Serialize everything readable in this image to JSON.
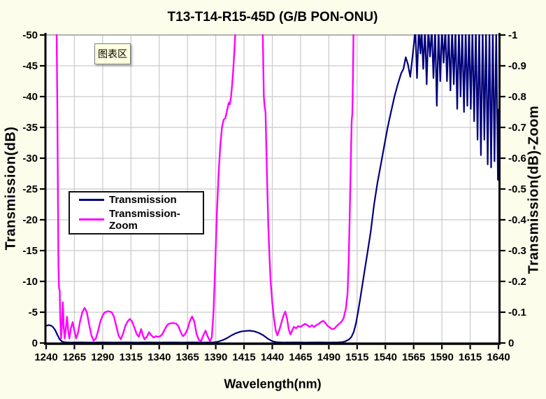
{
  "window": {
    "background": "#FDFDEC",
    "plot_background": "#FFFFFF",
    "gridline_color": "#C9C9C9"
  },
  "tooltip": {
    "label": "图表区"
  },
  "chart_data": {
    "type": "line",
    "title": "T13-T14-R15-45D (G/B PON-ONU)",
    "xlabel": "Wavelength(nm)",
    "ylabel_left": "Transmission(dB)",
    "ylabel_right": "Transmission(dB)-Zoom",
    "x_range": [
      1240,
      1640
    ],
    "y_left_range": [
      -50,
      0
    ],
    "y_right_range": [
      -1,
      0
    ],
    "axes_note": "both y axes inverted: most negative value at top, 0 at bottom",
    "grid": true,
    "legend_position": "inside top-left",
    "x_ticks": [
      1240,
      1265,
      1290,
      1315,
      1340,
      1365,
      1390,
      1415,
      1440,
      1465,
      1490,
      1515,
      1540,
      1565,
      1590,
      1615,
      1640
    ],
    "y_left_ticks": [
      -50,
      -45,
      -40,
      -35,
      -30,
      -25,
      -20,
      -15,
      -10,
      -5,
      0
    ],
    "y_right_ticks": [
      -1,
      -0.9,
      -0.8,
      -0.7,
      -0.6,
      -0.5,
      -0.4,
      -0.3,
      -0.2,
      -0.1,
      0
    ],
    "annotations": [
      {
        "text": "图表区",
        "type": "tooltip",
        "location": "top-left of plot"
      }
    ],
    "series": [
      {
        "name": "Transmission",
        "axis": "left",
        "color": "#00007B",
        "width": 2.2,
        "points": [
          [
            1240,
            -2.8
          ],
          [
            1242,
            -2.9
          ],
          [
            1244,
            -2.85
          ],
          [
            1246,
            -2.6
          ],
          [
            1248,
            -2.1
          ],
          [
            1250,
            -1.3
          ],
          [
            1252,
            -0.6
          ],
          [
            1254,
            -0.25
          ],
          [
            1256,
            -0.12
          ],
          [
            1260,
            -0.08
          ],
          [
            1270,
            -0.1
          ],
          [
            1280,
            -0.07
          ],
          [
            1290,
            -0.1
          ],
          [
            1300,
            -0.08
          ],
          [
            1310,
            -0.1
          ],
          [
            1320,
            -0.08
          ],
          [
            1330,
            -0.1
          ],
          [
            1340,
            -0.08
          ],
          [
            1350,
            -0.1
          ],
          [
            1360,
            -0.08
          ],
          [
            1370,
            -0.1
          ],
          [
            1380,
            -0.08
          ],
          [
            1388,
            -0.1
          ],
          [
            1392,
            -0.2
          ],
          [
            1396,
            -0.45
          ],
          [
            1400,
            -0.8
          ],
          [
            1404,
            -1.25
          ],
          [
            1408,
            -1.6
          ],
          [
            1412,
            -1.85
          ],
          [
            1416,
            -1.95
          ],
          [
            1420,
            -2.0
          ],
          [
            1424,
            -1.9
          ],
          [
            1428,
            -1.65
          ],
          [
            1432,
            -1.25
          ],
          [
            1436,
            -0.7
          ],
          [
            1440,
            -0.3
          ],
          [
            1444,
            -0.12
          ],
          [
            1450,
            -0.08
          ],
          [
            1460,
            -0.1
          ],
          [
            1470,
            -0.08
          ],
          [
            1480,
            -0.1
          ],
          [
            1490,
            -0.08
          ],
          [
            1498,
            -0.1
          ],
          [
            1502,
            -0.15
          ],
          [
            1505,
            -0.3
          ],
          [
            1508,
            -0.6
          ],
          [
            1510,
            -1.0
          ],
          [
            1512,
            -1.8
          ],
          [
            1514,
            -3.2
          ],
          [
            1516,
            -5.2
          ],
          [
            1518,
            -7.5
          ],
          [
            1521,
            -11
          ],
          [
            1524,
            -14.5
          ],
          [
            1527,
            -18
          ],
          [
            1530,
            -22.5
          ],
          [
            1533,
            -26
          ],
          [
            1536,
            -29
          ],
          [
            1539,
            -32
          ],
          [
            1542,
            -35
          ],
          [
            1545,
            -37.5
          ],
          [
            1548,
            -40
          ],
          [
            1551,
            -42
          ],
          [
            1554,
            -43.8
          ],
          [
            1556,
            -44.5
          ],
          [
            1558,
            -46.4
          ],
          [
            1560,
            -45.2
          ],
          [
            1562,
            -43.2
          ],
          [
            1564,
            -46.5
          ],
          [
            1565.5,
            -49
          ],
          [
            1566.5,
            -51
          ],
          [
            1568,
            -43
          ],
          [
            1569.5,
            -51
          ],
          [
            1571,
            -47
          ],
          [
            1572,
            -51
          ],
          [
            1573.5,
            -44.5
          ],
          [
            1575,
            -51
          ],
          [
            1576.5,
            -42
          ],
          [
            1578,
            -51
          ],
          [
            1579.5,
            -46.5
          ],
          [
            1581,
            -51
          ],
          [
            1582.5,
            -43
          ],
          [
            1584,
            -51
          ],
          [
            1585.5,
            -38.5
          ],
          [
            1587,
            -51
          ],
          [
            1588.5,
            -42.5
          ],
          [
            1590,
            -51
          ],
          [
            1591.5,
            -45.5
          ],
          [
            1593,
            -51
          ],
          [
            1594.5,
            -42.5
          ],
          [
            1596,
            -51
          ],
          [
            1597.5,
            -41
          ],
          [
            1599,
            -51
          ],
          [
            1600.5,
            -42
          ],
          [
            1602,
            -51
          ],
          [
            1603.5,
            -38
          ],
          [
            1605,
            -51
          ],
          [
            1606.5,
            -40
          ],
          [
            1608,
            -51
          ],
          [
            1609.5,
            -37.5
          ],
          [
            1611,
            -51
          ],
          [
            1612.5,
            -38.5
          ],
          [
            1614,
            -51
          ],
          [
            1615.5,
            -38
          ],
          [
            1617,
            -51
          ],
          [
            1618.5,
            -36
          ],
          [
            1620,
            -51
          ],
          [
            1621.5,
            -33
          ],
          [
            1623,
            -51
          ],
          [
            1624.5,
            -30.5
          ],
          [
            1626,
            -51
          ],
          [
            1627.5,
            -33
          ],
          [
            1629,
            -51
          ],
          [
            1630.5,
            -29
          ],
          [
            1632,
            -51
          ],
          [
            1633.5,
            -28.5
          ],
          [
            1635,
            -51
          ],
          [
            1636.5,
            -29.5
          ],
          [
            1638,
            -51
          ],
          [
            1639.5,
            -26.5
          ],
          [
            1640,
            -38
          ]
        ]
      },
      {
        "name": "Transmission-Zoom",
        "axis": "right",
        "color": "#FF00FF",
        "width": 2.4,
        "points": [
          [
            1240,
            -1.3
          ],
          [
            1248,
            -1.3
          ],
          [
            1249,
            -1.1
          ],
          [
            1249.8,
            -0.8
          ],
          [
            1250.4,
            -0.5
          ],
          [
            1250.9,
            -0.25
          ],
          [
            1251.4,
            -0.18
          ],
          [
            1252,
            -0.17
          ],
          [
            1252.5,
            -0.08
          ],
          [
            1253.2,
            -0.015
          ],
          [
            1254,
            -0.06
          ],
          [
            1254.8,
            -0.132
          ],
          [
            1255.6,
            -0.05
          ],
          [
            1256.4,
            -0.015
          ],
          [
            1257.5,
            -0.05
          ],
          [
            1258.5,
            -0.085
          ],
          [
            1259.5,
            -0.04
          ],
          [
            1260.5,
            -0.015
          ],
          [
            1262,
            -0.05
          ],
          [
            1263.5,
            -0.068
          ],
          [
            1265,
            -0.04
          ],
          [
            1266.5,
            -0.015
          ],
          [
            1268,
            -0.03
          ],
          [
            1270,
            -0.07
          ],
          [
            1272,
            -0.1
          ],
          [
            1274,
            -0.114
          ],
          [
            1276,
            -0.1
          ],
          [
            1278,
            -0.06
          ],
          [
            1280,
            -0.025
          ],
          [
            1282,
            -0.008
          ],
          [
            1284,
            -0.015
          ],
          [
            1286,
            -0.04
          ],
          [
            1288,
            -0.07
          ],
          [
            1290,
            -0.09
          ],
          [
            1292,
            -0.1
          ],
          [
            1295,
            -0.103
          ],
          [
            1298,
            -0.1
          ],
          [
            1300,
            -0.085
          ],
          [
            1302,
            -0.055
          ],
          [
            1304,
            -0.025
          ],
          [
            1306,
            -0.012
          ],
          [
            1308,
            -0.03
          ],
          [
            1310,
            -0.055
          ],
          [
            1312,
            -0.07
          ],
          [
            1314,
            -0.078
          ],
          [
            1316,
            -0.07
          ],
          [
            1318,
            -0.05
          ],
          [
            1320,
            -0.03
          ],
          [
            1322,
            -0.02
          ],
          [
            1324,
            -0.045
          ],
          [
            1325.5,
            -0.025
          ],
          [
            1327,
            -0.012
          ],
          [
            1329,
            -0.02
          ],
          [
            1331,
            -0.035
          ],
          [
            1333,
            -0.025
          ],
          [
            1335,
            -0.018
          ],
          [
            1337,
            -0.022
          ],
          [
            1339,
            -0.02
          ],
          [
            1341,
            -0.022
          ],
          [
            1343,
            -0.03
          ],
          [
            1345,
            -0.045
          ],
          [
            1347,
            -0.058
          ],
          [
            1349,
            -0.063
          ],
          [
            1352,
            -0.065
          ],
          [
            1355,
            -0.063
          ],
          [
            1357,
            -0.055
          ],
          [
            1359,
            -0.035
          ],
          [
            1361,
            -0.022
          ],
          [
            1363,
            -0.03
          ],
          [
            1365,
            -0.045
          ],
          [
            1367,
            -0.07
          ],
          [
            1369,
            -0.086
          ],
          [
            1371,
            -0.07
          ],
          [
            1373,
            -0.03
          ],
          [
            1375,
            -0.01
          ],
          [
            1377,
            -0.006
          ],
          [
            1379,
            -0.025
          ],
          [
            1381,
            -0.04
          ],
          [
            1383,
            -0.02
          ],
          [
            1385,
            -0.006
          ],
          [
            1386.5,
            -0.02
          ],
          [
            1388,
            -0.1
          ],
          [
            1389.5,
            -0.25
          ],
          [
            1391,
            -0.42
          ],
          [
            1392.5,
            -0.55
          ],
          [
            1394,
            -0.64
          ],
          [
            1395.5,
            -0.7
          ],
          [
            1397,
            -0.725
          ],
          [
            1398.5,
            -0.73
          ],
          [
            1400,
            -0.755
          ],
          [
            1401.5,
            -0.78
          ],
          [
            1402.5,
            -0.775
          ],
          [
            1403.5,
            -0.8
          ],
          [
            1404.5,
            -0.84
          ],
          [
            1405.5,
            -0.89
          ],
          [
            1406.5,
            -0.95
          ],
          [
            1407.5,
            -1.02
          ],
          [
            1408.5,
            -1.2
          ],
          [
            1430.5,
            -1.2
          ],
          [
            1431.5,
            -1.02
          ],
          [
            1432,
            -0.9
          ],
          [
            1432.5,
            -0.8
          ],
          [
            1433.2,
            -0.768
          ],
          [
            1434,
            -0.75
          ],
          [
            1434.8,
            -0.62
          ],
          [
            1435.6,
            -0.5
          ],
          [
            1436.5,
            -0.38
          ],
          [
            1437.5,
            -0.28
          ],
          [
            1438.5,
            -0.2
          ],
          [
            1440,
            -0.13
          ],
          [
            1441.5,
            -0.08
          ],
          [
            1443,
            -0.04
          ],
          [
            1444.5,
            -0.025
          ],
          [
            1446,
            -0.04
          ],
          [
            1448,
            -0.065
          ],
          [
            1450,
            -0.09
          ],
          [
            1451.5,
            -0.102
          ],
          [
            1453,
            -0.08
          ],
          [
            1454.5,
            -0.045
          ],
          [
            1456,
            -0.028
          ],
          [
            1457.5,
            -0.04
          ],
          [
            1459,
            -0.052
          ],
          [
            1461,
            -0.048
          ],
          [
            1463,
            -0.055
          ],
          [
            1465,
            -0.052
          ],
          [
            1467,
            -0.058
          ],
          [
            1469,
            -0.062
          ],
          [
            1471,
            -0.058
          ],
          [
            1473,
            -0.052
          ],
          [
            1475,
            -0.058
          ],
          [
            1477,
            -0.052
          ],
          [
            1479,
            -0.058
          ],
          [
            1481,
            -0.062
          ],
          [
            1483,
            -0.068
          ],
          [
            1485,
            -0.072
          ],
          [
            1487,
            -0.065
          ],
          [
            1489,
            -0.055
          ],
          [
            1491,
            -0.05
          ],
          [
            1493,
            -0.045
          ],
          [
            1495,
            -0.047
          ],
          [
            1497,
            -0.055
          ],
          [
            1499,
            -0.062
          ],
          [
            1501,
            -0.068
          ],
          [
            1503,
            -0.08
          ],
          [
            1505,
            -0.11
          ],
          [
            1506.5,
            -0.16
          ],
          [
            1507.5,
            -0.26
          ],
          [
            1508.5,
            -0.42
          ],
          [
            1509.5,
            -0.6
          ],
          [
            1510.2,
            -0.72
          ],
          [
            1510.8,
            -0.745
          ],
          [
            1511.3,
            -0.85
          ],
          [
            1511.8,
            -1.0
          ],
          [
            1512.3,
            -1.3
          ],
          [
            1640,
            -1.3
          ]
        ]
      }
    ]
  }
}
